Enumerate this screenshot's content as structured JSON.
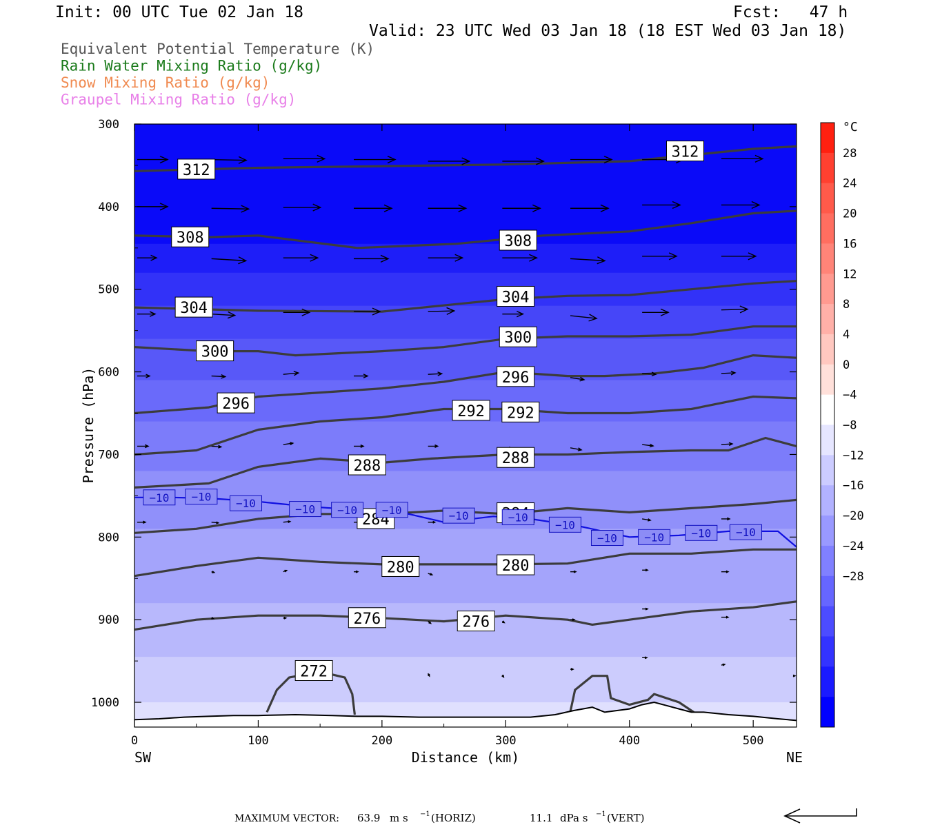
{
  "header": {
    "init": "Init: 00 UTC Tue 02 Jan 18",
    "fcst": "Fcst:   47 h",
    "valid": "Valid: 23 UTC Wed 03 Jan 18 (18 EST Wed 03 Jan 18)"
  },
  "legend": [
    {
      "label": "Equivalent Potential Temperature (K)",
      "color": "#555555"
    },
    {
      "label": "Rain Water Mixing Ratio (g/kg)",
      "color": "#1a7a1a"
    },
    {
      "label": "Snow Mixing Ratio (g/kg)",
      "color": "#f08a50"
    },
    {
      "label": "Graupel Mixing Ratio (g/kg)",
      "color": "#e880e8"
    }
  ],
  "chart_data": {
    "type": "cross-section",
    "xlabel": "Distance (km)",
    "ylabel": "Pressure (hPa)",
    "xlim": [
      0,
      535
    ],
    "ylim": [
      1030,
      300
    ],
    "x_ticks": [
      0,
      100,
      200,
      300,
      400,
      500
    ],
    "y_ticks": [
      300,
      400,
      500,
      600,
      700,
      800,
      900,
      1000
    ],
    "left_end": "SW",
    "right_end": "NE",
    "temperature_fill": {
      "unit": "°C",
      "colorbar_labels": [
        "28",
        "24",
        "20",
        "16",
        "12",
        "8",
        "4",
        "0",
        "−4",
        "−8",
        "−12",
        "−16",
        "−20",
        "−24",
        "−28"
      ],
      "colorbar_colors": [
        "#ff2010",
        "#ff4030",
        "#ff5a4a",
        "#ff6e60",
        "#ff8478",
        "#ff9a90",
        "#ffb0a8",
        "#ffc8c0",
        "#ffe0da",
        "#ffffff",
        "#e6e6ff",
        "#ccccff",
        "#b2b2ff",
        "#9999ff",
        "#8080ff",
        "#6666ff",
        "#4c4cff",
        "#3333ff",
        "#1a1aff",
        "#0000ff"
      ],
      "layers": [
        {
          "top": 300,
          "color": "#0a0af8"
        },
        {
          "top": 445,
          "color": "#1e1ef8"
        },
        {
          "top": 480,
          "color": "#3232f8"
        },
        {
          "top": 520,
          "color": "#4646f8"
        },
        {
          "top": 560,
          "color": "#5858f8"
        },
        {
          "top": 610,
          "color": "#6a6afa"
        },
        {
          "top": 660,
          "color": "#7c7cfa"
        },
        {
          "top": 720,
          "color": "#9090fa"
        },
        {
          "top": 790,
          "color": "#a4a4fb"
        },
        {
          "top": 880,
          "color": "#b8b8fc"
        },
        {
          "top": 945,
          "color": "#ccccfd"
        },
        {
          "top": 1000,
          "color": "#e0e0fe"
        }
      ]
    },
    "theta_e_contours": [
      {
        "value": 312,
        "x": [
          0,
          100,
          200,
          300,
          400,
          500,
          535
        ],
        "p": [
          357,
          353,
          351,
          349,
          345,
          330,
          327
        ]
      },
      {
        "value": 308,
        "x": [
          0,
          60,
          100,
          180,
          260,
          330,
          400,
          450,
          500,
          535
        ],
        "p": [
          435,
          437,
          435,
          450,
          445,
          435,
          430,
          420,
          408,
          405
        ]
      },
      {
        "value": 304,
        "x": [
          0,
          100,
          200,
          260,
          300,
          350,
          400,
          450,
          500,
          535
        ],
        "p": [
          522,
          526,
          527,
          518,
          512,
          508,
          507,
          500,
          493,
          490
        ]
      },
      {
        "value": 300,
        "x": [
          0,
          60,
          100,
          130,
          200,
          250,
          300,
          350,
          400,
          450,
          500,
          535
        ],
        "p": [
          570,
          575,
          575,
          580,
          575,
          570,
          560,
          557,
          557,
          555,
          545,
          545
        ]
      },
      {
        "value": 296,
        "x": [
          0,
          60,
          100,
          150,
          200,
          250,
          300,
          350,
          380,
          420,
          460,
          500,
          535
        ],
        "p": [
          650,
          643,
          630,
          625,
          620,
          612,
          600,
          605,
          605,
          602,
          595,
          580,
          583
        ]
      },
      {
        "value": 292,
        "x": [
          0,
          50,
          100,
          150,
          200,
          250,
          300,
          350,
          400,
          450,
          500,
          535
        ],
        "p": [
          700,
          695,
          670,
          660,
          655,
          645,
          645,
          650,
          650,
          645,
          630,
          632
        ]
      },
      {
        "value": 288,
        "x": [
          0,
          60,
          100,
          150,
          200,
          240,
          300,
          350,
          400,
          450,
          480,
          510,
          535
        ],
        "p": [
          740,
          735,
          715,
          705,
          710,
          705,
          700,
          700,
          697,
          695,
          695,
          680,
          690
        ]
      },
      {
        "value": 284,
        "x": [
          0,
          50,
          100,
          150,
          200,
          250,
          300,
          350,
          400,
          450,
          500,
          535
        ],
        "p": [
          795,
          790,
          778,
          772,
          772,
          768,
          772,
          765,
          770,
          765,
          760,
          755
        ]
      },
      {
        "value": 280,
        "x": [
          0,
          50,
          100,
          150,
          200,
          250,
          300,
          350,
          400,
          450,
          500,
          535
        ],
        "p": [
          847,
          835,
          825,
          830,
          833,
          833,
          833,
          832,
          820,
          820,
          815,
          815
        ]
      },
      {
        "value": 276,
        "x": [
          0,
          50,
          100,
          150,
          200,
          250,
          300,
          350,
          370,
          400,
          450,
          500,
          535
        ],
        "p": [
          912,
          900,
          895,
          895,
          898,
          902,
          895,
          900,
          906,
          900,
          890,
          885,
          878
        ]
      },
      {
        "value": 272,
        "x": [
          107,
          115,
          125,
          150,
          170,
          176,
          178
        ],
        "p": [
          1012,
          985,
          970,
          963,
          970,
          990,
          1015
        ]
      },
      {
        "value": 272,
        "x": [
          352,
          356,
          370,
          382,
          385,
          400,
          415,
          420,
          440,
          452
        ],
        "p": [
          1013,
          985,
          968,
          968,
          995,
          1003,
          997,
          990,
          1000,
          1012
        ]
      }
    ],
    "contour_labels": [
      {
        "text": "312",
        "x": 50,
        "p": 355
      },
      {
        "text": "312",
        "x": 445,
        "p": 333
      },
      {
        "text": "308",
        "x": 45,
        "p": 437
      },
      {
        "text": "308",
        "x": 310,
        "p": 441
      },
      {
        "text": "304",
        "x": 48,
        "p": 522
      },
      {
        "text": "304",
        "x": 308,
        "p": 509
      },
      {
        "text": "300",
        "x": 65,
        "p": 575
      },
      {
        "text": "300",
        "x": 310,
        "p": 558
      },
      {
        "text": "296",
        "x": 82,
        "p": 638
      },
      {
        "text": "296",
        "x": 308,
        "p": 606
      },
      {
        "text": "292",
        "x": 272,
        "p": 647
      },
      {
        "text": "292",
        "x": 312,
        "p": 649
      },
      {
        "text": "288",
        "x": 188,
        "p": 713
      },
      {
        "text": "288",
        "x": 308,
        "p": 704
      },
      {
        "text": "284",
        "x": 195,
        "p": 778
      },
      {
        "text": "284",
        "x": 308,
        "p": 771
      },
      {
        "text": "280",
        "x": 215,
        "p": 836
      },
      {
        "text": "280",
        "x": 308,
        "p": 834
      },
      {
        "text": "276",
        "x": 188,
        "p": 898
      },
      {
        "text": "276",
        "x": 276,
        "p": 902
      },
      {
        "text": "272",
        "x": 145,
        "p": 962
      }
    ],
    "isotherm_minus10": {
      "x": [
        0,
        30,
        60,
        100,
        140,
        180,
        210,
        250,
        290,
        320,
        360,
        400,
        440,
        480,
        520,
        535
      ],
      "p": [
        752,
        752,
        753,
        757,
        763,
        767,
        768,
        782,
        775,
        778,
        787,
        800,
        798,
        793,
        793,
        812
      ],
      "labels": [
        {
          "text": "−10",
          "x": 20,
          "p": 752
        },
        {
          "text": "−10",
          "x": 54,
          "p": 751
        },
        {
          "text": "−10",
          "x": 90,
          "p": 759
        },
        {
          "text": "−10",
          "x": 138,
          "p": 766
        },
        {
          "text": "−10",
          "x": 172,
          "p": 767
        },
        {
          "text": "−10",
          "x": 208,
          "p": 767
        },
        {
          "text": "−10",
          "x": 262,
          "p": 774
        },
        {
          "text": "−10",
          "x": 310,
          "p": 776
        },
        {
          "text": "−10",
          "x": 348,
          "p": 785
        },
        {
          "text": "−10",
          "x": 382,
          "p": 801
        },
        {
          "text": "−10",
          "x": 420,
          "p": 800
        },
        {
          "text": "−10",
          "x": 458,
          "p": 795
        },
        {
          "text": "−10",
          "x": 494,
          "p": 794
        }
      ]
    },
    "terrain": {
      "x": [
        0,
        20,
        40,
        60,
        80,
        100,
        130,
        160,
        180,
        200,
        230,
        260,
        290,
        320,
        340,
        355,
        370,
        380,
        390,
        400,
        410,
        420,
        430,
        440,
        450,
        460,
        480,
        500,
        520,
        535
      ],
      "p": [
        1021,
        1020,
        1018,
        1017,
        1016,
        1016,
        1015,
        1016,
        1017,
        1017,
        1018,
        1018,
        1018,
        1018,
        1015,
        1010,
        1006,
        1012,
        1010,
        1008,
        1003,
        1000,
        1004,
        1008,
        1012,
        1012,
        1015,
        1017,
        1020,
        1022
      ]
    },
    "wind_vectors": [
      {
        "x": 0,
        "p": 343,
        "u": 44,
        "w": 0
      },
      {
        "x": 58,
        "p": 343,
        "u": 54,
        "w": 1
      },
      {
        "x": 118,
        "p": 342,
        "u": 60,
        "w": 0
      },
      {
        "x": 175,
        "p": 343,
        "u": 60,
        "w": 0
      },
      {
        "x": 235,
        "p": 345,
        "u": 60,
        "w": 0
      },
      {
        "x": 295,
        "p": 345,
        "u": 60,
        "w": 0
      },
      {
        "x": 350,
        "p": 343,
        "u": 60,
        "w": 0
      },
      {
        "x": 408,
        "p": 343,
        "u": 60,
        "w": 0
      },
      {
        "x": 472,
        "p": 342,
        "u": 60,
        "w": 0
      },
      {
        "x": 0,
        "p": 400,
        "u": 44,
        "w": 0
      },
      {
        "x": 60,
        "p": 402,
        "u": 54,
        "w": 1
      },
      {
        "x": 118,
        "p": 401,
        "u": 54,
        "w": 0
      },
      {
        "x": 175,
        "p": 402,
        "u": 55,
        "w": 0
      },
      {
        "x": 235,
        "p": 402,
        "u": 55,
        "w": 0
      },
      {
        "x": 295,
        "p": 402,
        "u": 55,
        "w": 0
      },
      {
        "x": 350,
        "p": 402,
        "u": 55,
        "w": 0
      },
      {
        "x": 408,
        "p": 398,
        "u": 55,
        "w": 0
      },
      {
        "x": 472,
        "p": 398,
        "u": 55,
        "w": 0
      },
      {
        "x": 0,
        "p": 462,
        "u": 28,
        "w": 0
      },
      {
        "x": 60,
        "p": 463,
        "u": 50,
        "w": 3
      },
      {
        "x": 118,
        "p": 462,
        "u": 50,
        "w": 0
      },
      {
        "x": 175,
        "p": 463,
        "u": 50,
        "w": 0
      },
      {
        "x": 235,
        "p": 462,
        "u": 50,
        "w": 0
      },
      {
        "x": 295,
        "p": 462,
        "u": 50,
        "w": 0
      },
      {
        "x": 350,
        "p": 463,
        "u": 50,
        "w": 3
      },
      {
        "x": 408,
        "p": 460,
        "u": 50,
        "w": 0
      },
      {
        "x": 472,
        "p": 460,
        "u": 50,
        "w": 0
      },
      {
        "x": 0,
        "p": 530,
        "u": 26,
        "w": 0
      },
      {
        "x": 60,
        "p": 530,
        "u": 34,
        "w": 2
      },
      {
        "x": 118,
        "p": 528,
        "u": 38,
        "w": 0
      },
      {
        "x": 175,
        "p": 527,
        "u": 38,
        "w": 0
      },
      {
        "x": 235,
        "p": 527,
        "u": 38,
        "w": -1
      },
      {
        "x": 295,
        "p": 530,
        "u": 30,
        "w": 0
      },
      {
        "x": 350,
        "p": 532,
        "u": 38,
        "w": 4
      },
      {
        "x": 408,
        "p": 528,
        "u": 38,
        "w": 0
      },
      {
        "x": 472,
        "p": 525,
        "u": 38,
        "w": -1
      },
      {
        "x": 0,
        "p": 605,
        "u": 18,
        "w": 0
      },
      {
        "x": 60,
        "p": 605,
        "u": 20,
        "w": 1
      },
      {
        "x": 118,
        "p": 603,
        "u": 22,
        "w": -2
      },
      {
        "x": 175,
        "p": 605,
        "u": 20,
        "w": 0
      },
      {
        "x": 235,
        "p": 603,
        "u": 20,
        "w": -1
      },
      {
        "x": 295,
        "p": 605,
        "u": 20,
        "w": 0
      },
      {
        "x": 350,
        "p": 607,
        "u": 20,
        "w": 3
      },
      {
        "x": 408,
        "p": 602,
        "u": 20,
        "w": 1
      },
      {
        "x": 472,
        "p": 602,
        "u": 20,
        "w": -1
      },
      {
        "x": 0,
        "p": 690,
        "u": 16,
        "w": 0
      },
      {
        "x": 60,
        "p": 690,
        "u": 14,
        "w": 1
      },
      {
        "x": 118,
        "p": 688,
        "u": 14,
        "w": -2
      },
      {
        "x": 175,
        "p": 690,
        "u": 14,
        "w": 0
      },
      {
        "x": 235,
        "p": 690,
        "u": 14,
        "w": 0
      },
      {
        "x": 295,
        "p": 692,
        "u": 14,
        "w": 1
      },
      {
        "x": 350,
        "p": 692,
        "u": 16,
        "w": 3
      },
      {
        "x": 408,
        "p": 688,
        "u": 16,
        "w": 2
      },
      {
        "x": 472,
        "p": 688,
        "u": 16,
        "w": -1
      },
      {
        "x": 0,
        "p": 782,
        "u": 12,
        "w": 0
      },
      {
        "x": 60,
        "p": 782,
        "u": 10,
        "w": 1
      },
      {
        "x": 118,
        "p": 782,
        "u": 10,
        "w": -1
      },
      {
        "x": 175,
        "p": 782,
        "u": 10,
        "w": 0
      },
      {
        "x": 235,
        "p": 782,
        "u": 10,
        "w": 0
      },
      {
        "x": 295,
        "p": 782,
        "u": 10,
        "w": 0
      },
      {
        "x": 350,
        "p": 782,
        "u": 12,
        "w": 2
      },
      {
        "x": 408,
        "p": 778,
        "u": 12,
        "w": 2
      },
      {
        "x": 472,
        "p": 778,
        "u": 12,
        "w": 0
      },
      {
        "x": 60,
        "p": 842,
        "u": 4,
        "w": 1
      },
      {
        "x": 118,
        "p": 842,
        "u": 5,
        "w": -2
      },
      {
        "x": 175,
        "p": 842,
        "u": 6,
        "w": 0
      },
      {
        "x": 235,
        "p": 844,
        "u": 6,
        "w": 2
      },
      {
        "x": 295,
        "p": 844,
        "u": 6,
        "w": 0
      },
      {
        "x": 350,
        "p": 842,
        "u": 8,
        "w": 0
      },
      {
        "x": 408,
        "p": 840,
        "u": 8,
        "w": 0
      },
      {
        "x": 472,
        "p": 842,
        "u": 10,
        "w": 0
      },
      {
        "x": 60,
        "p": 898,
        "u": 3,
        "w": 1
      },
      {
        "x": 118,
        "p": 898,
        "u": 4,
        "w": 0
      },
      {
        "x": 235,
        "p": 902,
        "u": 4,
        "w": 3
      },
      {
        "x": 295,
        "p": 902,
        "u": 3,
        "w": 2
      },
      {
        "x": 350,
        "p": 900,
        "u": 6,
        "w": 0
      },
      {
        "x": 408,
        "p": 887,
        "u": 8,
        "w": 0
      },
      {
        "x": 472,
        "p": 897,
        "u": 10,
        "w": 0
      },
      {
        "x": 235,
        "p": 965,
        "u": 2,
        "w": 4
      },
      {
        "x": 295,
        "p": 967,
        "u": 2,
        "w": 3
      },
      {
        "x": 350,
        "p": 960,
        "u": 4,
        "w": 0
      },
      {
        "x": 408,
        "p": 946,
        "u": 7,
        "w": 0
      },
      {
        "x": 472,
        "p": 955,
        "u": 5,
        "w": -1
      },
      {
        "x": 530,
        "p": 968,
        "u": 3,
        "w": 0
      }
    ],
    "max_vector": {
      "label": "MAXIMUM VECTOR:",
      "horiz_value": "63.9",
      "horiz_unit": "m s",
      "horiz_exp": "−1",
      "horiz_kind": "(HORIZ)",
      "vert_value": "11.1",
      "vert_unit": "dPa s",
      "vert_exp": "−1",
      "vert_kind": "(VERT)"
    }
  }
}
